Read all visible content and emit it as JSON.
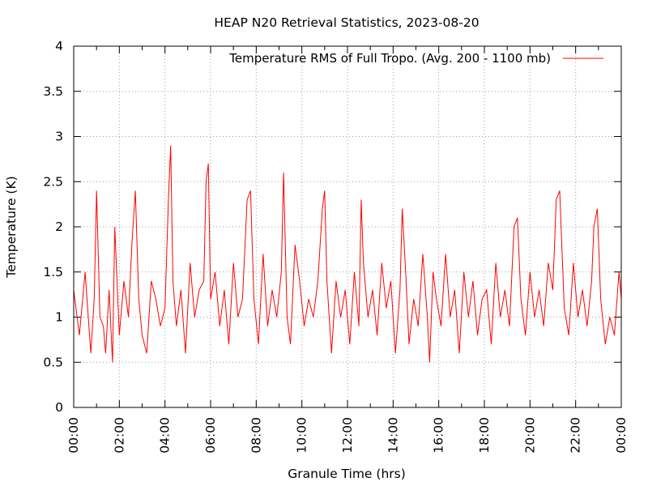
{
  "chart_data": {
    "type": "line",
    "title": "HEAP N20 Retrieval Statistics, 2023-08-20",
    "xlabel": "Granule Time (hrs)",
    "ylabel": "Temperature (K)",
    "xlim": [
      "00:00",
      "24:00"
    ],
    "ylim": [
      0,
      4
    ],
    "grid": true,
    "legend_position": "top-right",
    "x_ticks": [
      "00:00",
      "02:00",
      "04:00",
      "06:00",
      "08:00",
      "10:00",
      "12:00",
      "14:00",
      "16:00",
      "18:00",
      "20:00",
      "22:00",
      "00:00"
    ],
    "y_ticks": [
      "0",
      "0.5",
      "1",
      "1.5",
      "2",
      "2.5",
      "3",
      "3.5",
      "4"
    ],
    "series": [
      {
        "name": "Temperature RMS of Full Tropo. (Avg. 200 - 1100 mb)",
        "color": "#ff0000",
        "x_unit": "hours",
        "x": [
          0.0,
          0.25,
          0.5,
          0.75,
          0.9,
          1.0,
          1.15,
          1.3,
          1.4,
          1.55,
          1.7,
          1.8,
          2.0,
          2.2,
          2.4,
          2.55,
          2.7,
          2.85,
          3.0,
          3.2,
          3.4,
          3.6,
          3.8,
          4.0,
          4.15,
          4.25,
          4.35,
          4.5,
          4.7,
          4.9,
          5.1,
          5.3,
          5.5,
          5.7,
          5.8,
          5.9,
          6.0,
          6.2,
          6.4,
          6.6,
          6.8,
          7.0,
          7.2,
          7.4,
          7.6,
          7.75,
          7.9,
          8.1,
          8.3,
          8.5,
          8.7,
          8.9,
          9.1,
          9.2,
          9.35,
          9.5,
          9.7,
          9.9,
          10.1,
          10.3,
          10.5,
          10.7,
          10.9,
          11.0,
          11.1,
          11.3,
          11.5,
          11.7,
          11.9,
          12.1,
          12.3,
          12.5,
          12.6,
          12.7,
          12.9,
          13.1,
          13.3,
          13.5,
          13.7,
          13.9,
          14.1,
          14.3,
          14.4,
          14.55,
          14.7,
          14.9,
          15.1,
          15.3,
          15.5,
          15.6,
          15.75,
          15.9,
          16.1,
          16.3,
          16.5,
          16.7,
          16.9,
          17.1,
          17.3,
          17.5,
          17.7,
          17.9,
          18.1,
          18.3,
          18.5,
          18.7,
          18.9,
          19.1,
          19.3,
          19.45,
          19.6,
          19.8,
          20.0,
          20.2,
          20.4,
          20.6,
          20.8,
          21.0,
          21.15,
          21.3,
          21.5,
          21.7,
          21.9,
          22.1,
          22.3,
          22.5,
          22.7,
          22.8,
          22.95,
          23.1,
          23.3,
          23.5,
          23.7,
          23.9,
          24.0
        ],
        "values": [
          1.3,
          0.8,
          1.5,
          0.6,
          1.2,
          2.4,
          1.0,
          0.9,
          0.6,
          1.3,
          0.5,
          2.0,
          0.8,
          1.4,
          1.0,
          1.8,
          2.4,
          1.2,
          0.8,
          0.6,
          1.4,
          1.2,
          0.9,
          1.1,
          2.3,
          2.9,
          1.4,
          0.9,
          1.3,
          0.6,
          1.6,
          1.0,
          1.3,
          1.4,
          2.5,
          2.7,
          1.2,
          1.5,
          0.9,
          1.3,
          0.7,
          1.6,
          1.0,
          1.2,
          2.3,
          2.4,
          1.2,
          0.7,
          1.7,
          0.9,
          1.3,
          1.0,
          1.5,
          2.6,
          1.0,
          0.7,
          1.8,
          1.4,
          0.9,
          1.2,
          1.0,
          1.4,
          2.2,
          2.4,
          1.4,
          0.6,
          1.4,
          1.0,
          1.3,
          0.7,
          1.5,
          0.9,
          2.3,
          1.6,
          1.0,
          1.3,
          0.8,
          1.6,
          1.1,
          1.4,
          0.6,
          1.3,
          2.2,
          1.5,
          0.7,
          1.2,
          0.9,
          1.7,
          1.0,
          0.5,
          1.5,
          1.2,
          0.9,
          1.7,
          1.0,
          1.3,
          0.6,
          1.5,
          1.0,
          1.4,
          0.8,
          1.2,
          1.3,
          0.7,
          1.6,
          1.0,
          1.3,
          0.9,
          2.0,
          2.1,
          1.2,
          0.8,
          1.5,
          1.0,
          1.3,
          0.9,
          1.6,
          1.3,
          2.3,
          2.4,
          1.1,
          0.8,
          1.6,
          1.0,
          1.3,
          0.9,
          1.4,
          2.0,
          2.2,
          1.2,
          0.7,
          1.0,
          0.8,
          1.5,
          1.2
        ]
      }
    ]
  }
}
